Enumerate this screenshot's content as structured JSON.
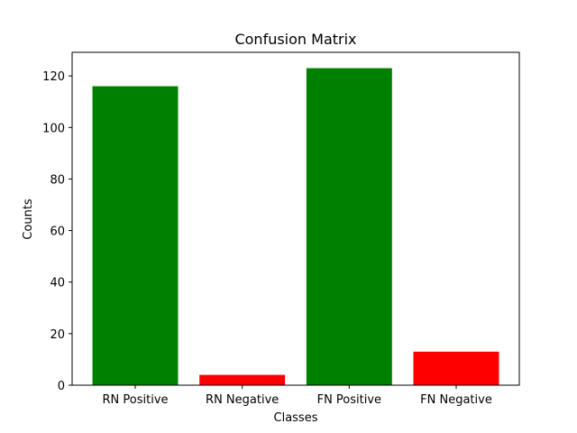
{
  "chart_data": {
    "type": "bar",
    "title": "Confusion Matrix",
    "xlabel": "Classes",
    "ylabel": "Counts",
    "categories": [
      "RN Positive",
      "RN Negative",
      "FN Positive",
      "FN Negative"
    ],
    "values": [
      116,
      4,
      123,
      13
    ],
    "bar_colors": [
      "#008000",
      "#ff0000",
      "#008000",
      "#ff0000"
    ],
    "ylim": [
      0,
      129.15
    ],
    "yticks": [
      0,
      20,
      40,
      60,
      80,
      100,
      120
    ],
    "grid": false,
    "legend": "none"
  }
}
